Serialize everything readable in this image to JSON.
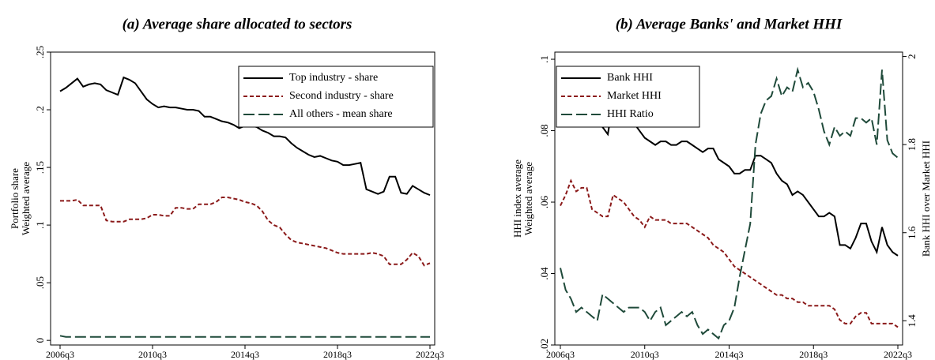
{
  "chart_data": [
    {
      "type": "line",
      "title": "(a) Average share allocated to sectors",
      "ylabel": [
        "Portfolio share",
        "Weighted average"
      ],
      "legend": "top-right",
      "categories": [
        "2006q3",
        "2006q4",
        "2007q1",
        "2007q2",
        "2007q3",
        "2007q4",
        "2008q1",
        "2008q2",
        "2008q3",
        "2008q4",
        "2009q1",
        "2009q2",
        "2009q3",
        "2009q4",
        "2010q1",
        "2010q2",
        "2010q3",
        "2010q4",
        "2011q1",
        "2011q2",
        "2011q3",
        "2011q4",
        "2012q1",
        "2012q2",
        "2012q3",
        "2012q4",
        "2013q1",
        "2013q2",
        "2013q3",
        "2013q4",
        "2014q1",
        "2014q2",
        "2014q3",
        "2014q4",
        "2015q1",
        "2015q2",
        "2015q3",
        "2015q4",
        "2016q1",
        "2016q2",
        "2016q3",
        "2016q4",
        "2017q1",
        "2017q2",
        "2017q3",
        "2017q4",
        "2018q1",
        "2018q2",
        "2018q3",
        "2018q4",
        "2019q1",
        "2019q2",
        "2019q3",
        "2019q4",
        "2020q1",
        "2020q2",
        "2020q3",
        "2020q4",
        "2021q1",
        "2021q2",
        "2021q3",
        "2021q4",
        "2022q1",
        "2022q2",
        "2022q3"
      ],
      "xticks": [
        "2006q3",
        "2010q3",
        "2014q3",
        "2018q3",
        "2022q3"
      ],
      "ylim": [
        -0.004,
        0.25
      ],
      "yticks": [
        0,
        {
          "value": 0.05,
          "label": ".05"
        },
        {
          "value": 0.1,
          "label": ".1"
        },
        {
          "value": 0.15,
          "label": ".15"
        },
        {
          "value": 0.2,
          "label": ".2"
        },
        {
          "value": 0.25,
          "label": ".25"
        }
      ],
      "series": [
        {
          "name": "Top industry - share",
          "color": "#000000",
          "dash": "solid",
          "values": [
            0.216,
            0.219,
            0.223,
            0.227,
            0.22,
            0.222,
            0.223,
            0.222,
            0.217,
            0.215,
            0.213,
            0.228,
            0.226,
            0.223,
            0.216,
            0.209,
            0.205,
            0.202,
            0.203,
            0.202,
            0.202,
            0.201,
            0.2,
            0.2,
            0.199,
            0.194,
            0.194,
            0.192,
            0.19,
            0.189,
            0.187,
            0.184,
            0.186,
            0.186,
            0.185,
            0.182,
            0.18,
            0.177,
            0.177,
            0.176,
            0.171,
            0.167,
            0.164,
            0.161,
            0.159,
            0.16,
            0.158,
            0.156,
            0.155,
            0.152,
            0.152,
            0.153,
            0.154,
            0.131,
            0.129,
            0.127,
            0.129,
            0.142,
            0.142,
            0.128,
            0.127,
            0.134,
            0.131,
            0.128,
            0.126
          ]
        },
        {
          "name": "Second industry - share",
          "color": "#8b1a1a",
          "dash": "short",
          "values": [
            0.121,
            0.121,
            0.121,
            0.122,
            0.117,
            0.117,
            0.117,
            0.117,
            0.104,
            0.103,
            0.103,
            0.103,
            0.105,
            0.105,
            0.105,
            0.106,
            0.109,
            0.109,
            0.108,
            0.108,
            0.115,
            0.115,
            0.114,
            0.114,
            0.118,
            0.118,
            0.118,
            0.12,
            0.124,
            0.124,
            0.123,
            0.122,
            0.12,
            0.119,
            0.117,
            0.112,
            0.104,
            0.1,
            0.098,
            0.092,
            0.087,
            0.085,
            0.084,
            0.083,
            0.082,
            0.081,
            0.08,
            0.078,
            0.076,
            0.075,
            0.075,
            0.075,
            0.075,
            0.075,
            0.076,
            0.075,
            0.073,
            0.066,
            0.066,
            0.066,
            0.07,
            0.076,
            0.073,
            0.065,
            0.067
          ]
        },
        {
          "name": "All others - mean share",
          "color": "#1f4a3a",
          "dash": "long",
          "values": [
            0.004,
            0.003,
            0.003,
            0.003,
            0.003,
            0.003,
            0.003,
            0.003,
            0.003,
            0.003,
            0.003,
            0.003,
            0.003,
            0.003,
            0.003,
            0.003,
            0.003,
            0.003,
            0.003,
            0.003,
            0.003,
            0.003,
            0.003,
            0.003,
            0.003,
            0.003,
            0.003,
            0.003,
            0.003,
            0.003,
            0.003,
            0.003,
            0.003,
            0.003,
            0.003,
            0.003,
            0.003,
            0.003,
            0.003,
            0.003,
            0.003,
            0.003,
            0.003,
            0.003,
            0.003,
            0.003,
            0.003,
            0.003,
            0.003,
            0.003,
            0.003,
            0.003,
            0.003,
            0.003,
            0.003,
            0.003,
            0.003,
            0.003,
            0.003,
            0.003,
            0.003,
            0.003,
            0.003,
            0.003,
            0.003
          ]
        }
      ]
    },
    {
      "type": "line",
      "title": "(b) Average Banks' and Market HHI",
      "ylabel": [
        "HHI index average",
        "Weighted average"
      ],
      "y2label": "Bank HHI over Market HHI",
      "legend": "top-left",
      "categories": [
        "2006q3",
        "2006q4",
        "2007q1",
        "2007q2",
        "2007q3",
        "2007q4",
        "2008q1",
        "2008q2",
        "2008q3",
        "2008q4",
        "2009q1",
        "2009q2",
        "2009q3",
        "2009q4",
        "2010q1",
        "2010q2",
        "2010q3",
        "2010q4",
        "2011q1",
        "2011q2",
        "2011q3",
        "2011q4",
        "2012q1",
        "2012q2",
        "2012q3",
        "2012q4",
        "2013q1",
        "2013q2",
        "2013q3",
        "2013q4",
        "2014q1",
        "2014q2",
        "2014q3",
        "2014q4",
        "2015q1",
        "2015q2",
        "2015q3",
        "2015q4",
        "2016q1",
        "2016q2",
        "2016q3",
        "2016q4",
        "2017q1",
        "2017q2",
        "2017q3",
        "2017q4",
        "2018q1",
        "2018q2",
        "2018q3",
        "2018q4",
        "2019q1",
        "2019q2",
        "2019q3",
        "2019q4",
        "2020q1",
        "2020q2",
        "2020q3",
        "2020q4",
        "2021q1",
        "2021q2",
        "2021q3",
        "2021q4",
        "2022q1",
        "2022q2",
        "2022q3"
      ],
      "xticks": [
        "2006q3",
        "2010q3",
        "2014q3",
        "2018q3",
        "2022q3"
      ],
      "ylim": [
        0.02,
        0.102
      ],
      "yticks": [
        {
          "value": 0.02,
          "label": ".02"
        },
        {
          "value": 0.04,
          "label": ".04"
        },
        {
          "value": 0.06,
          "label": ".06"
        },
        {
          "value": 0.08,
          "label": ".08"
        },
        {
          "value": 0.1,
          "label": ".1"
        }
      ],
      "y2lim": [
        1.345,
        2.01
      ],
      "y2ticks": [
        1.4,
        1.6,
        1.8,
        2
      ],
      "series": [
        {
          "name": "Bank HHI",
          "color": "#000000",
          "dash": "solid",
          "values": [
            0.091,
            0.092,
            0.094,
            0.09,
            0.091,
            0.089,
            0.085,
            0.082,
            0.081,
            0.079,
            0.088,
            0.086,
            0.087,
            0.085,
            0.082,
            0.08,
            0.078,
            0.077,
            0.076,
            0.077,
            0.077,
            0.076,
            0.076,
            0.077,
            0.077,
            0.076,
            0.075,
            0.074,
            0.075,
            0.075,
            0.072,
            0.071,
            0.07,
            0.068,
            0.068,
            0.069,
            0.069,
            0.073,
            0.073,
            0.072,
            0.071,
            0.068,
            0.066,
            0.065,
            0.062,
            0.063,
            0.062,
            0.06,
            0.058,
            0.056,
            0.056,
            0.057,
            0.056,
            0.048,
            0.048,
            0.047,
            0.05,
            0.054,
            0.054,
            0.049,
            0.046,
            0.053,
            0.048,
            0.046,
            0.045
          ]
        },
        {
          "name": "Market HHI",
          "color": "#8b1a1a",
          "dash": "short",
          "values": [
            0.059,
            0.062,
            0.066,
            0.063,
            0.064,
            0.064,
            0.058,
            0.057,
            0.056,
            0.056,
            0.062,
            0.061,
            0.06,
            0.058,
            0.056,
            0.055,
            0.053,
            0.056,
            0.055,
            0.055,
            0.055,
            0.054,
            0.054,
            0.054,
            0.054,
            0.053,
            0.052,
            0.051,
            0.05,
            0.048,
            0.047,
            0.046,
            0.044,
            0.042,
            0.041,
            0.04,
            0.039,
            0.038,
            0.037,
            0.036,
            0.035,
            0.034,
            0.034,
            0.033,
            0.033,
            0.032,
            0.032,
            0.031,
            0.031,
            0.031,
            0.031,
            0.031,
            0.03,
            0.027,
            0.026,
            0.026,
            0.028,
            0.029,
            0.029,
            0.026,
            0.026,
            0.026,
            0.026,
            0.026,
            0.025
          ]
        },
        {
          "name": "HHI Ratio",
          "color": "#1f4a3a",
          "dash": "long",
          "axis": "y2",
          "values": [
            1.52,
            1.47,
            1.45,
            1.42,
            1.43,
            1.42,
            1.41,
            1.4,
            1.46,
            1.45,
            1.44,
            1.43,
            1.42,
            1.43,
            1.43,
            1.43,
            1.42,
            1.4,
            1.42,
            1.43,
            1.39,
            1.4,
            1.41,
            1.42,
            1.41,
            1.42,
            1.39,
            1.37,
            1.38,
            1.37,
            1.36,
            1.39,
            1.4,
            1.43,
            1.5,
            1.56,
            1.62,
            1.8,
            1.87,
            1.9,
            1.91,
            1.95,
            1.91,
            1.93,
            1.92,
            1.97,
            1.93,
            1.94,
            1.92,
            1.88,
            1.83,
            1.8,
            1.84,
            1.82,
            1.83,
            1.82,
            1.86,
            1.86,
            1.85,
            1.86,
            1.8,
            1.97,
            1.81,
            1.78,
            1.77
          ]
        }
      ]
    }
  ]
}
